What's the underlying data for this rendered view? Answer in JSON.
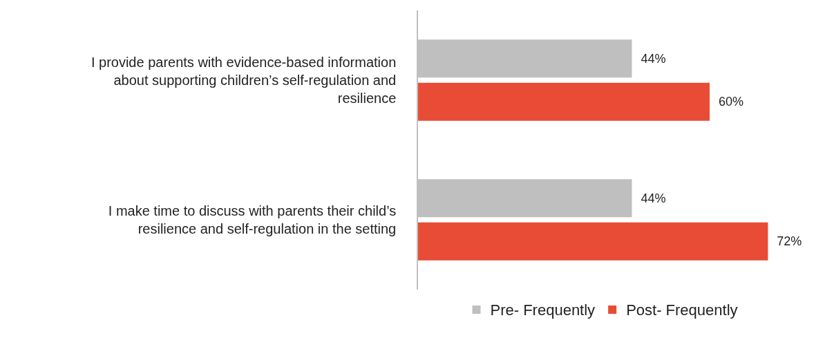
{
  "chart_data": {
    "type": "bar",
    "orientation": "horizontal",
    "categories": [
      "I provide parents with evidence-based information about supporting children’s self-regulation and resilience",
      "I make time to discuss with parents their child’s resilience and self-regulation in the setting"
    ],
    "series": [
      {
        "name": "Pre- Frequently",
        "color": "#bfbfbf",
        "values": [
          44,
          44
        ],
        "value_labels": [
          "44%",
          "44%"
        ]
      },
      {
        "name": "Post- Frequently",
        "color": "#e84c36",
        "values": [
          60,
          72
        ],
        "value_labels": [
          "60%",
          "72%"
        ]
      }
    ],
    "grid": false,
    "legend": "bottom"
  }
}
